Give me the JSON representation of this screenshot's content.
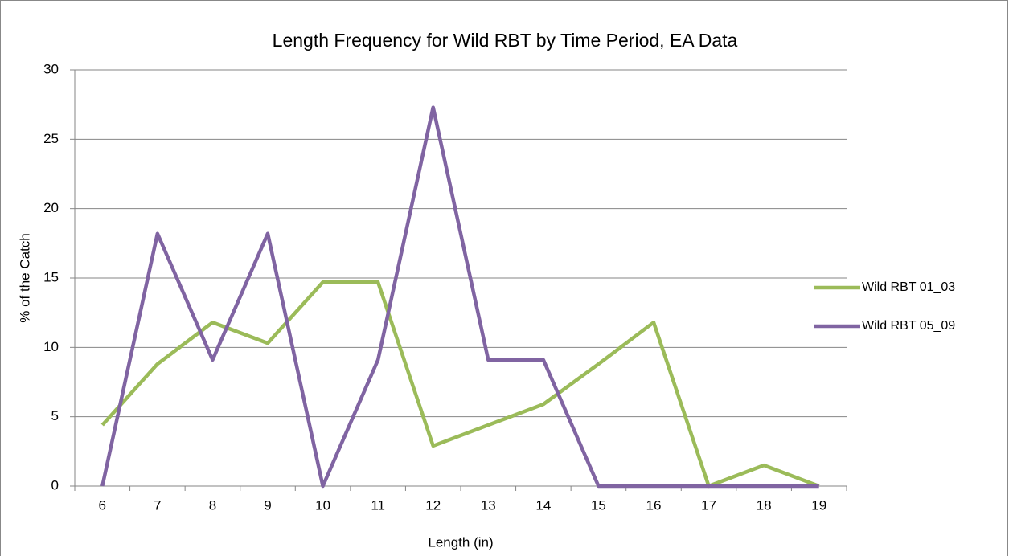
{
  "chart_data": {
    "type": "line",
    "title": "Length Frequency for Wild RBT by Time Period, EA Data",
    "x_label": "Length (in)",
    "y_label": "% of the Catch",
    "categories": [
      "6",
      "7",
      "8",
      "9",
      "10",
      "11",
      "12",
      "13",
      "14",
      "15",
      "16",
      "17",
      "18",
      "19"
    ],
    "series": [
      {
        "name": "Wild RBT 01_03",
        "color": "#9bbb59",
        "values": [
          4.4,
          8.8,
          11.8,
          10.3,
          14.7,
          14.7,
          2.9,
          4.4,
          5.9,
          8.8,
          11.8,
          0,
          1.5,
          0
        ]
      },
      {
        "name": "Wild RBT 05_09",
        "color": "#8064a2",
        "values": [
          0,
          18.2,
          9.1,
          18.2,
          0,
          9.1,
          27.3,
          9.1,
          9.1,
          0,
          0,
          0,
          0,
          0
        ]
      }
    ],
    "ylim": [
      0,
      30
    ],
    "yticks": [
      0,
      5,
      10,
      15,
      20,
      25,
      30
    ],
    "grid": true,
    "legend": "right"
  }
}
